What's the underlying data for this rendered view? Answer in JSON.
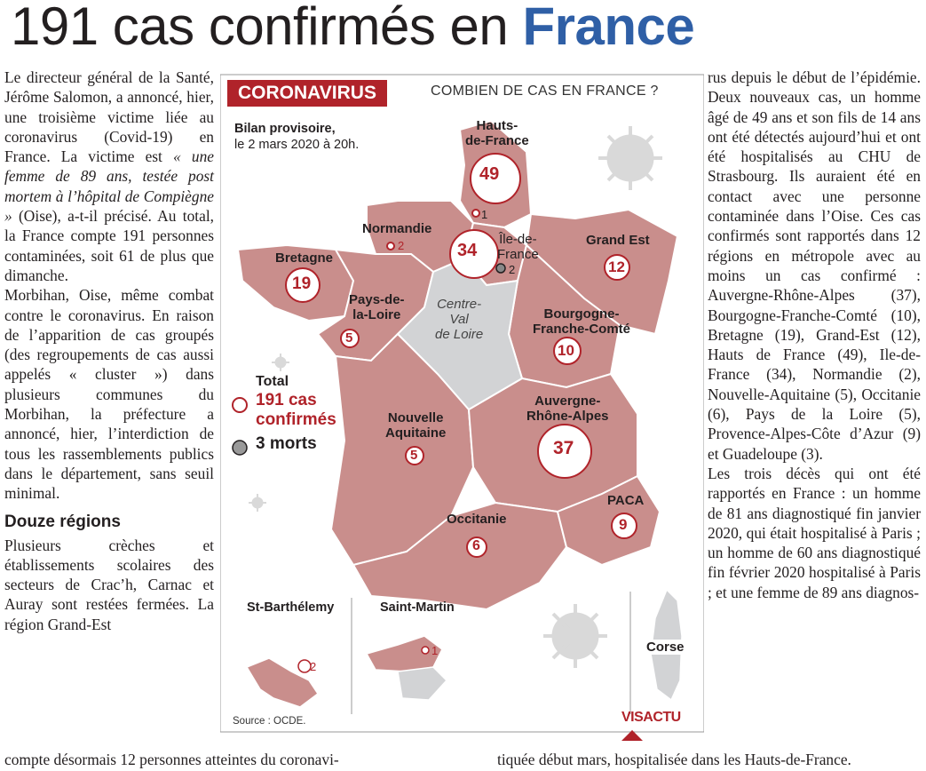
{
  "headline": {
    "lead": "191 cas confirmés en ",
    "strong": "France"
  },
  "left_column": {
    "p1": "Le directeur général de la Santé, Jérôme Salomon, a annoncé, hier, une troisième victime liée au coronavirus (Covid-19) en France. La victime est",
    "p1_quote": "« une femme de 89 ans, testée post mortem à l’hôpital de Compiègne »",
    "p1_end": " (Oise), a-t-il précisé. Au total, la France compte 191 personnes contaminées, soit 61 de plus que dimanche.",
    "p2": "Morbihan, Oise, même combat contre le coronavirus. En raison de l’apparition de cas groupés (des regroupements de cas aussi appelés « cluster ») dans plusieurs communes du Morbihan, la préfecture a annoncé, hier, l’interdiction de tous les rassemblements publics dans le département, sans seuil minimal.",
    "subhead": "Douze régions",
    "p3": "Plusieurs crèches et établissements scolaires des secteurs de Crac’h, Carnac et Auray sont restées fermées. La région Grand-Est"
  },
  "bottom_line": {
    "left": "compte désormais 12 personnes atteintes du coronavi-",
    "right": "tiquée début mars, hospitalisée dans les Hauts-de-France."
  },
  "right_column": {
    "p1": "rus depuis le début de l’épidémie. Deux nouveaux cas, un homme âgé de 49 ans et son fils de 14 ans ont été détectés aujourd’hui et ont été hospitalisés au CHU de Strasbourg. Ils auraient été en contact avec une personne contaminée dans l’Oise. Ces cas confirmés sont rapportés dans 12 régions en métropole avec au moins un cas confirmé : Auvergne-Rhône-Alpes (37), Bourgogne-Franche-Comté (10), Bretagne (19), Grand-Est (12), Hauts de France (49), Ile-de-France (34), Normandie (2), Nouvelle-Aquitaine (5), Occitanie (6), Pays de la Loire (5), Provence-Alpes-Côte d’Azur (9) et Guadeloupe (3).",
    "p2": "Les trois décès qui ont été rapportés en France : un homme de 81 ans diagnostiqué fin janvier 2020, qui était hospitalisé à Paris ; un homme de 60 ans diagnostiqué fin février 2020 hospitalisé à Paris ; et une femme de 89 ans diagnos-"
  },
  "infographic": {
    "tag": "CORONAVIRUS",
    "question": "COMBIEN DE CAS EN FRANCE ?",
    "bilan_line1": "Bilan provisoire,",
    "bilan_line2": "le 2 mars 2020 à 20h.",
    "total_label": "Total",
    "total_cas_line1": "191 cas",
    "total_cas_line2": "confirmés",
    "total_morts": "3 morts",
    "source": "Source : OCDE.",
    "logo": "VISACTU",
    "regions": {
      "hauts_de_france": {
        "l1": "Hauts-",
        "l2": "de-France",
        "cases": "49",
        "sub": "1"
      },
      "ile_de_france": {
        "l1": "Île-de-",
        "l2": "France",
        "cases": "34",
        "deaths": "2"
      },
      "grand_est": {
        "l1": "Grand Est",
        "cases": "12"
      },
      "normandie": {
        "l1": "Normandie",
        "cases": "2"
      },
      "bretagne": {
        "l1": "Bretagne",
        "cases": "19"
      },
      "pays_de_la_loire": {
        "l1": "Pays-de-",
        "l2": "la-Loire",
        "cases": "5"
      },
      "centre_val_de_loire": {
        "l1": "Centre-",
        "l2": "Val",
        "l3": "de Loire"
      },
      "bourgogne": {
        "l1": "Bourgogne-",
        "l2": "Franche-Comté",
        "cases": "10"
      },
      "auvergne": {
        "l1": "Auvergne-",
        "l2": "Rhône-Alpes",
        "cases": "37"
      },
      "nouvelle_aquitaine": {
        "l1": "Nouvelle",
        "l2": "Aquitaine",
        "cases": "5"
      },
      "occitanie": {
        "l1": "Occitanie",
        "cases": "6"
      },
      "paca": {
        "l1": "PACA",
        "cases": "9"
      },
      "st_barthelemy": {
        "l1": "St-Barthélemy",
        "cases": "2"
      },
      "saint_martin": {
        "l1": "Saint-Martin",
        "cases": "1"
      },
      "corse": {
        "l1": "Corse"
      }
    }
  }
}
